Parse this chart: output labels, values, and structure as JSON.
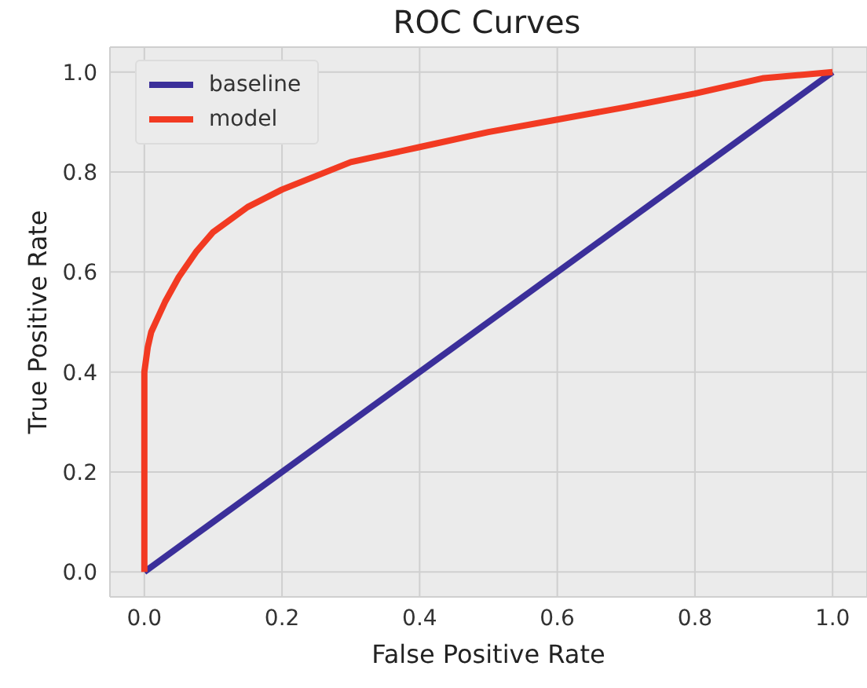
{
  "chart_data": {
    "type": "line",
    "title": "ROC Curves",
    "xlabel": "False Positive Rate",
    "ylabel": "True Positive Rate",
    "xlim": [
      -0.05,
      1.05
    ],
    "ylim": [
      -0.05,
      1.05
    ],
    "xticks": [
      {
        "value": 0,
        "label": "0.0"
      },
      0.2,
      0.4,
      0.6,
      0.8,
      {
        "value": 1,
        "label": "1.0"
      }
    ],
    "yticks": [
      {
        "value": 0,
        "label": "0.0"
      },
      0.2,
      0.4,
      0.6,
      0.8,
      {
        "value": 1,
        "label": "1.0"
      }
    ],
    "grid": true,
    "legend": "top left",
    "marker": "none",
    "line_style": "solid",
    "series": [
      {
        "name": "baseline",
        "color": "#3b2f9a",
        "x": [
          0,
          1
        ],
        "values": [
          0,
          1
        ]
      },
      {
        "name": "model",
        "color": "#f23a22",
        "x": [
          0,
          0,
          0.005,
          0.01,
          0.02,
          0.03,
          0.05,
          0.075,
          0.1,
          0.15,
          0.2,
          0.3,
          0.4,
          0.5,
          0.6,
          0.7,
          0.8,
          0.9,
          1
        ],
        "values": [
          0,
          0.4,
          0.45,
          0.48,
          0.51,
          0.54,
          0.59,
          0.64,
          0.68,
          0.73,
          0.765,
          0.82,
          0.85,
          0.88,
          0.905,
          0.93,
          0.957,
          0.988,
          1
        ]
      }
    ]
  }
}
